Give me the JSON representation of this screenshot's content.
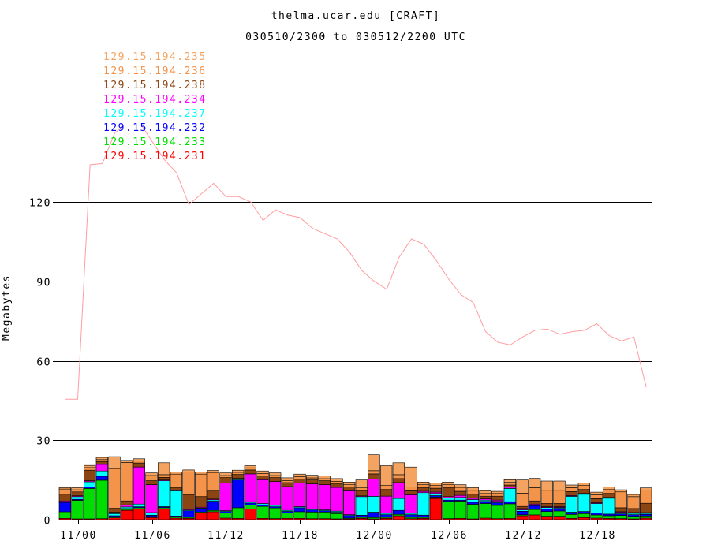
{
  "title": "thelma.ucar.edu [CRAFT]",
  "subtitle": "030510/2300 to 030512/2200 UTC",
  "chart_data": {
    "type": "bar",
    "stacked": true,
    "title": "thelma.ucar.edu [CRAFT]",
    "subtitle": "030510/2300 to 030512/2200 UTC",
    "xlabel": "",
    "ylabel": "Megabytes",
    "ylim": [
      0,
      150
    ],
    "yticks": [
      0,
      30,
      60,
      90,
      120
    ],
    "xtick_labels": [
      "11/00",
      "11/06",
      "11/12",
      "11/18",
      "12/00",
      "12/06",
      "12/12",
      "12/18"
    ],
    "xtick_index": [
      1,
      7,
      13,
      19,
      25,
      31,
      37,
      43
    ],
    "grid": "horizontal",
    "legend_position": "top-left",
    "categories": [
      "10/23",
      "11/00",
      "11/01",
      "11/02",
      "11/03",
      "11/04",
      "11/05",
      "11/06",
      "11/07",
      "11/08",
      "11/09",
      "11/10",
      "11/11",
      "11/12",
      "11/13",
      "11/14",
      "11/15",
      "11/16",
      "11/17",
      "11/18",
      "11/19",
      "11/20",
      "11/21",
      "11/22",
      "11/23",
      "12/00",
      "12/01",
      "12/02",
      "12/03",
      "12/04",
      "12/05",
      "12/06",
      "12/07",
      "12/08",
      "12/09",
      "12/10",
      "12/11",
      "12/12",
      "12/13",
      "12/14",
      "12/15",
      "12/16",
      "12/17",
      "12/18",
      "12/19",
      "12/20",
      "12/21",
      "12/22"
    ],
    "series": [
      {
        "name": "129.15.194.231",
        "color": "#ff0000",
        "values": [
          0.5,
          0.3,
          0.3,
          0.4,
          0.7,
          3.5,
          4.0,
          0.8,
          4.0,
          0.6,
          0.5,
          2.5,
          3.0,
          0.6,
          0.5,
          4.0,
          0.5,
          0.4,
          0.5,
          0.5,
          0.4,
          0.4,
          0.3,
          0.3,
          0.5,
          0.3,
          0.5,
          1.5,
          0.4,
          0.5,
          8.0,
          0.4,
          0.5,
          0.3,
          0.6,
          0.4,
          0.5,
          1.5,
          1.8,
          1.3,
          1.3,
          0.5,
          0.8,
          0.6,
          0.5,
          0.4,
          0.3,
          0.6
        ]
      },
      {
        "name": "129.15.194.233",
        "color": "#00dd00",
        "values": [
          2.5,
          7.0,
          11.5,
          14.5,
          0.3,
          0.4,
          0.5,
          0.4,
          0.5,
          0.5,
          0.4,
          0.4,
          0.5,
          2.0,
          4.0,
          1.5,
          4.5,
          4.0,
          2.0,
          2.5,
          2.5,
          2.5,
          2.0,
          0.3,
          0.4,
          0.5,
          0.4,
          0.5,
          0.5,
          0.4,
          0.5,
          6.5,
          6.5,
          5.5,
          5.5,
          5.0,
          5.5,
          0.4,
          2.0,
          1.8,
          2.0,
          1.5,
          1.5,
          1.2,
          1.0,
          1.2,
          1.0,
          0.8
        ]
      },
      {
        "name": "129.15.194.232",
        "color": "#0000ff",
        "values": [
          3.5,
          0.4,
          0.5,
          1.5,
          0.5,
          0.3,
          0.4,
          0.5,
          0.4,
          0.3,
          2.5,
          1.3,
          3.5,
          0.5,
          10.5,
          0.8,
          0.6,
          0.5,
          0.6,
          1.5,
          0.8,
          0.5,
          0.5,
          1.0,
          0.8,
          2.0,
          1.0,
          1.5,
          1.0,
          0.8,
          0.6,
          0.5,
          0.4,
          0.8,
          0.8,
          1.0,
          0.8,
          1.3,
          1.5,
          1.0,
          1.0,
          0.8,
          0.8,
          0.8,
          0.6,
          0.6,
          0.6,
          0.6
        ]
      },
      {
        "name": "129.15.194.237",
        "color": "#00ffff",
        "values": [
          0.3,
          1.0,
          2.0,
          2.0,
          0.8,
          0.6,
          1.0,
          1.0,
          9.8,
          9.5,
          0.3,
          0.2,
          0.5,
          0.3,
          0.3,
          0.5,
          0.5,
          0.5,
          0.4,
          0.4,
          0.3,
          0.3,
          0.4,
          0.3,
          7.0,
          6.0,
          0.5,
          4.5,
          0.5,
          8.5,
          0.8,
          0.8,
          1.0,
          1.0,
          0.5,
          0.5,
          5.0,
          0.5,
          0.3,
          0.5,
          0.3,
          6.0,
          6.5,
          3.5,
          6.0,
          0.5,
          0.5,
          0.4
        ]
      },
      {
        "name": "129.15.194.234",
        "color": "#ff00ff",
        "values": [
          0.3,
          0.3,
          0.4,
          2.5,
          0.5,
          0.8,
          14.0,
          10.5,
          0.3,
          0.3,
          0.3,
          0.3,
          0.3,
          10.5,
          0.3,
          10.5,
          9.0,
          9.0,
          9.0,
          9.0,
          9.5,
          9.5,
          9.0,
          9.0,
          0.3,
          6.5,
          6.5,
          6.0,
          7.0,
          0.5,
          0.5,
          0.5,
          0.8,
          0.5,
          0.5,
          0.5,
          0.5,
          0.5,
          0.3,
          0.3,
          0.3,
          0.3,
          0.3,
          0.3,
          0.3,
          0.3,
          0.3,
          0.3
        ]
      },
      {
        "name": "129.15.194.238",
        "color": "#8b4513",
        "values": [
          2.5,
          1.5,
          4.0,
          1.0,
          1.5,
          1.5,
          1.5,
          1.5,
          1.0,
          1.0,
          5.5,
          4.0,
          3.0,
          2.0,
          1.5,
          1.5,
          1.5,
          1.5,
          1.5,
          1.5,
          1.5,
          1.5,
          1.5,
          1.5,
          2.0,
          2.0,
          2.5,
          1.5,
          1.5,
          1.5,
          1.5,
          3.5,
          1.5,
          1.5,
          1.0,
          1.5,
          0.8,
          0.8,
          1.2,
          1.2,
          1.2,
          1.5,
          1.5,
          1.5,
          1.5,
          1.5,
          1.5,
          3.5
        ]
      },
      {
        "name": "129.15.194.236",
        "color": "#f4944a",
        "values": [
          2.0,
          0.8,
          1.0,
          0.8,
          15.0,
          14.5,
          0.8,
          2.0,
          1.0,
          5.0,
          8.5,
          8.5,
          7.0,
          0.8,
          0.8,
          0.8,
          0.8,
          0.8,
          0.8,
          0.8,
          0.8,
          0.8,
          0.8,
          0.8,
          1.0,
          1.2,
          1.5,
          1.5,
          1.5,
          1.0,
          1.0,
          1.0,
          1.5,
          1.5,
          1.0,
          1.0,
          1.0,
          5.0,
          5.0,
          5.0,
          5.0,
          1.5,
          1.5,
          1.5,
          1.5,
          6.0,
          4.5,
          5.0
        ]
      },
      {
        "name": "129.15.194.235",
        "color": "#f4a460",
        "values": [
          0.5,
          0.8,
          0.8,
          0.8,
          4.5,
          0.8,
          0.8,
          1.0,
          4.5,
          0.8,
          0.8,
          0.8,
          0.8,
          1.0,
          0.8,
          0.8,
          1.0,
          1.0,
          1.0,
          1.0,
          1.0,
          1.0,
          1.0,
          1.0,
          3.0,
          6.0,
          7.5,
          4.5,
          7.5,
          1.0,
          1.0,
          1.0,
          1.0,
          1.0,
          1.0,
          0.8,
          1.0,
          5.0,
          3.5,
          3.5,
          3.5,
          1.0,
          1.0,
          1.0,
          1.0,
          0.8,
          0.8,
          0.8
        ]
      }
    ],
    "line_series": {
      "name": "",
      "color": "#ff9da0",
      "values": [
        45.5,
        45.5,
        134,
        134.5,
        146,
        null,
        null,
        143,
        136,
        131,
        119,
        123,
        127,
        122,
        122,
        120,
        113,
        117,
        115,
        114,
        110,
        108,
        106,
        101,
        94,
        90,
        87,
        99,
        106,
        104,
        98,
        91,
        85,
        82,
        71,
        67,
        66,
        69,
        71.5,
        72,
        70,
        71,
        71.5,
        74,
        69.5,
        67.5,
        69,
        50
      ]
    }
  }
}
